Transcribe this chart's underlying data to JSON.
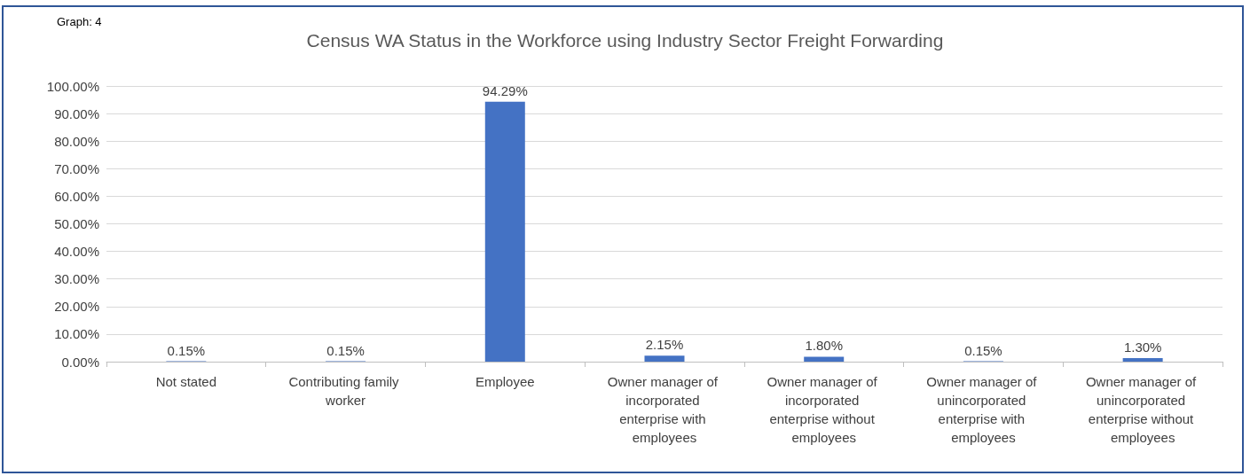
{
  "chart_data": {
    "type": "bar",
    "title": "Census WA Status in the Workforce using Industry Sector Freight Forwarding",
    "annotations": [
      "Graph: 4"
    ],
    "categories": [
      "Not stated",
      "Contributing family worker",
      "Employee",
      "Owner manager of incorporated enterprise with employees",
      "Owner manager of incorporated enterprise without employees",
      "Owner manager of unincorporated enterprise with employees",
      "Owner manager of unincorporated enterprise without employees"
    ],
    "values": [
      0.15,
      0.15,
      94.29,
      2.15,
      1.8,
      0.15,
      1.3
    ],
    "value_labels": [
      "0.15%",
      "0.15%",
      "94.29%",
      "2.15%",
      "1.80%",
      "0.15%",
      "1.30%"
    ],
    "color": "#4472c4",
    "ylim": [
      0,
      100
    ],
    "yticks": [
      {
        "value": 0,
        "label": "0.00%"
      },
      {
        "value": 10,
        "label": "10.00%"
      },
      {
        "value": 20,
        "label": "20.00%"
      },
      {
        "value": 30,
        "label": "30.00%"
      },
      {
        "value": 40,
        "label": "40.00%"
      },
      {
        "value": 50,
        "label": "50.00%"
      },
      {
        "value": 60,
        "label": "60.00%"
      },
      {
        "value": 70,
        "label": "70.00%"
      },
      {
        "value": 80,
        "label": "80.00%"
      },
      {
        "value": 90,
        "label": "90.00%"
      },
      {
        "value": 100,
        "label": "100.00%"
      }
    ],
    "grid": "y"
  }
}
